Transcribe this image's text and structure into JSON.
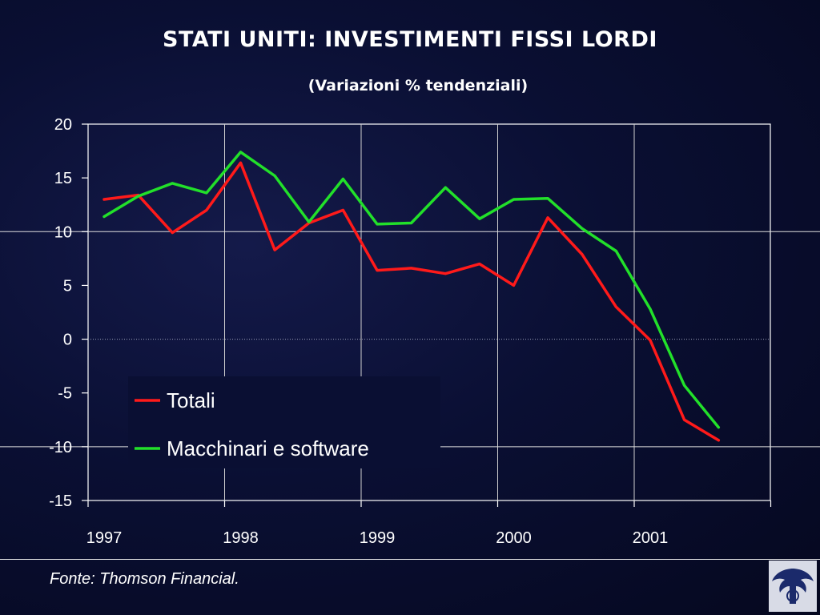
{
  "slide": {
    "title": "STATI UNITI: INVESTIMENTI FISSI LORDI",
    "subtitle": "(Variazioni % tendenziali)",
    "source": "Fonte: Thomson Financial."
  },
  "logo_icon": "eagle-emblem-icon",
  "colors": {
    "background": "#0a0f33",
    "totali": "#ff1a1a",
    "macchinari": "#22e02a",
    "axis": "#ffffff"
  },
  "chart_data": {
    "type": "line",
    "title": "STATI UNITI: INVESTIMENTI FISSI LORDI",
    "subtitle": "(Variazioni % tendenziali)",
    "xlabel": "",
    "ylabel": "",
    "ylim": [
      -15,
      20
    ],
    "yticks": [
      20,
      15,
      10,
      5,
      0,
      -5,
      -10,
      -15
    ],
    "x_tick_labels": [
      "1997",
      "1998",
      "1999",
      "2000",
      "2001"
    ],
    "x": [
      "1997Q1",
      "1997Q2",
      "1997Q3",
      "1997Q4",
      "1998Q1",
      "1998Q2",
      "1998Q3",
      "1998Q4",
      "1999Q1",
      "1999Q2",
      "1999Q3",
      "1999Q4",
      "2000Q1",
      "2000Q2",
      "2000Q3",
      "2000Q4",
      "2001Q1",
      "2001Q2",
      "2001Q3"
    ],
    "series": [
      {
        "name": "Totali",
        "color": "#ff1a1a",
        "values": [
          13.0,
          13.4,
          9.9,
          12.0,
          16.4,
          8.3,
          10.8,
          12.0,
          6.4,
          6.6,
          6.1,
          7.0,
          5.0,
          11.3,
          7.9,
          3.0,
          -0.1,
          -7.5,
          -9.4
        ]
      },
      {
        "name": "Macchinari e software",
        "color": "#22e02a",
        "values": [
          11.4,
          13.3,
          14.5,
          13.6,
          17.4,
          15.2,
          10.9,
          14.9,
          10.7,
          10.8,
          14.1,
          11.2,
          13.0,
          13.1,
          10.3,
          8.2,
          2.8,
          -4.3,
          -8.2
        ]
      }
    ],
    "legend_position": "lower-left",
    "grid": "vertical lines at year boundaries"
  }
}
